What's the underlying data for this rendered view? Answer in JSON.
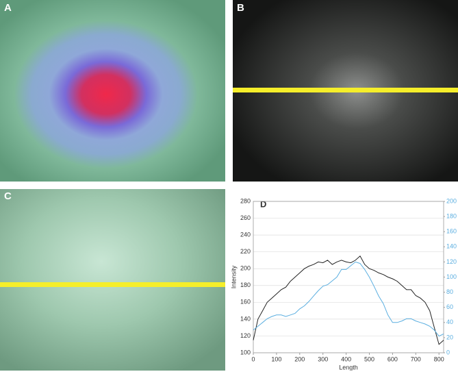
{
  "panels": {
    "a": "A",
    "b": "B",
    "c": "C"
  },
  "chart_data": {
    "type": "line",
    "label": "D",
    "xlabel": "Length",
    "ylabel": "Intensity",
    "x": [
      0,
      20,
      40,
      60,
      80,
      100,
      120,
      140,
      160,
      180,
      200,
      220,
      240,
      260,
      280,
      300,
      320,
      340,
      360,
      380,
      400,
      420,
      440,
      460,
      480,
      500,
      520,
      540,
      560,
      580,
      600,
      620,
      640,
      660,
      680,
      700,
      720,
      740,
      760,
      780,
      800,
      820
    ],
    "series": [
      {
        "color": "#222222",
        "values": [
          115,
          140,
          150,
          160,
          165,
          170,
          175,
          178,
          185,
          190,
          195,
          200,
          203,
          205,
          208,
          207,
          210,
          205,
          208,
          210,
          208,
          207,
          210,
          215,
          205,
          200,
          198,
          195,
          193,
          190,
          188,
          185,
          180,
          175,
          175,
          168,
          165,
          160,
          150,
          130,
          110,
          115
        ]
      },
      {
        "color": "#5aaee0",
        "axis": "y2",
        "values": [
          30,
          35,
          40,
          45,
          48,
          50,
          50,
          48,
          50,
          52,
          58,
          62,
          68,
          75,
          82,
          88,
          90,
          95,
          100,
          110,
          110,
          115,
          120,
          118,
          110,
          100,
          88,
          75,
          65,
          50,
          40,
          40,
          42,
          45,
          45,
          42,
          40,
          38,
          35,
          30,
          22,
          25
        ]
      }
    ],
    "xlim": [
      0,
      820
    ],
    "xticks": [
      0,
      100,
      200,
      300,
      400,
      500,
      600,
      700,
      800
    ],
    "ylim": [
      100,
      280
    ],
    "yticks": [
      100,
      120,
      140,
      160,
      180,
      200,
      220,
      240,
      260,
      280
    ],
    "y2lim": [
      0,
      200
    ],
    "y2ticks": [
      0,
      20,
      40,
      60,
      80,
      100,
      120,
      140,
      160,
      180,
      200
    ],
    "grid": true
  }
}
